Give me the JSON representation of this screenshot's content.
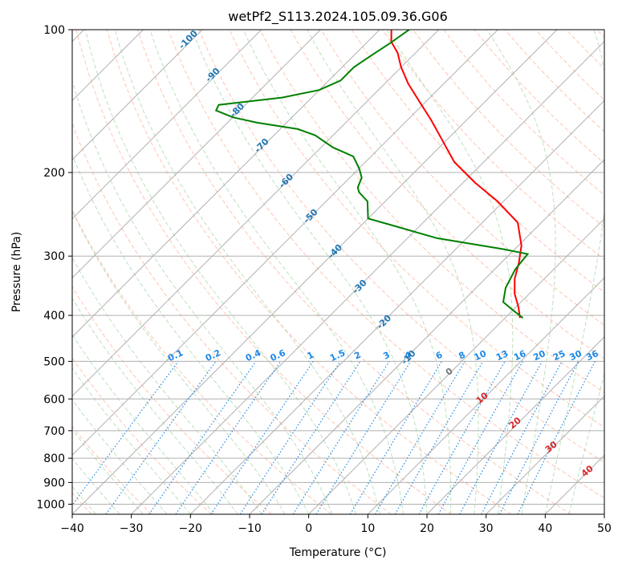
{
  "chart_data": {
    "type": "line",
    "subtype": "skew-t log-p diagram",
    "title": "wetPf2_S113.2024.105.09.36.G06",
    "xlabel": "Temperature (°C)",
    "ylabel": "Pressure (hPa)",
    "xlim": [
      -40,
      50
    ],
    "ylim": [
      1050,
      100
    ],
    "y_scale": "log",
    "grid": true,
    "x_ticks": [
      -40,
      -30,
      -20,
      -10,
      0,
      10,
      20,
      30,
      40,
      50
    ],
    "y_ticks": [
      100,
      200,
      300,
      400,
      500,
      600,
      700,
      800,
      900,
      1000
    ],
    "mixing_ratio_labels": [
      "0.1",
      "0.2",
      "0.4",
      "0.6",
      "1",
      "1.5",
      "2",
      "3",
      "4",
      "6",
      "8",
      "10",
      "13",
      "16",
      "20",
      "25",
      "30",
      "36"
    ],
    "dry_adiabat_labels": [
      "-100",
      "-90",
      "-80",
      "-70",
      "-60",
      "-50",
      "-40",
      "-30",
      "-20",
      "-10"
    ],
    "moist_adiabat_labels": [
      "0",
      "10",
      "20",
      "30",
      "40"
    ],
    "series": [
      {
        "key": "temperature",
        "color": "#ff0000",
        "points": [
          [
            2.5,
            405
          ],
          [
            0.5,
            385
          ],
          [
            -2.5,
            360
          ],
          [
            -5,
            335
          ],
          [
            -7,
            310
          ],
          [
            -9.5,
            285
          ],
          [
            -14,
            255
          ],
          [
            -21,
            230
          ],
          [
            -28,
            210
          ],
          [
            -35,
            190
          ],
          [
            -41,
            170
          ],
          [
            -46,
            155
          ],
          [
            -51,
            142
          ],
          [
            -56,
            130
          ],
          [
            -60,
            120
          ],
          [
            -63,
            112
          ],
          [
            -66,
            106
          ],
          [
            -68,
            100
          ]
        ]
      },
      {
        "key": "dewpoint",
        "color": "#008000",
        "points": [
          [
            3,
            405
          ],
          [
            0,
            390
          ],
          [
            -3,
            375
          ],
          [
            -5,
            350
          ],
          [
            -6.5,
            320
          ],
          [
            -7,
            297
          ],
          [
            -12,
            290
          ],
          [
            -25,
            275
          ],
          [
            -35,
            258
          ],
          [
            -40,
            250
          ],
          [
            -43,
            230
          ],
          [
            -46,
            220
          ],
          [
            -47,
            215
          ],
          [
            -48,
            205
          ],
          [
            -50,
            196
          ],
          [
            -53,
            185
          ],
          [
            -58,
            177
          ],
          [
            -63,
            167
          ],
          [
            -67,
            162
          ],
          [
            -75,
            157
          ],
          [
            -80,
            153
          ],
          [
            -84,
            148
          ],
          [
            -84.5,
            144
          ],
          [
            -75,
            139
          ],
          [
            -70,
            134
          ],
          [
            -68,
            128
          ],
          [
            -68,
            120
          ],
          [
            -67,
            113
          ],
          [
            -66,
            107
          ],
          [
            -65,
            100
          ]
        ]
      }
    ]
  }
}
